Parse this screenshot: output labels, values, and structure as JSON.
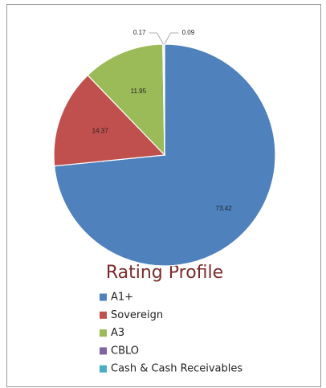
{
  "chart_data": {
    "type": "pie",
    "title": "Rating Profile",
    "categories": [
      "A1+",
      "Sovereign",
      "A3",
      "CBLO",
      "Cash & Cash Receivables"
    ],
    "values": [
      73.42,
      14.37,
      11.95,
      0.17,
      0.09
    ],
    "colors": [
      "#4f81bd",
      "#c0504d",
      "#9bbb59",
      "#8064a2",
      "#4bacc6"
    ],
    "legend": "bottom"
  }
}
